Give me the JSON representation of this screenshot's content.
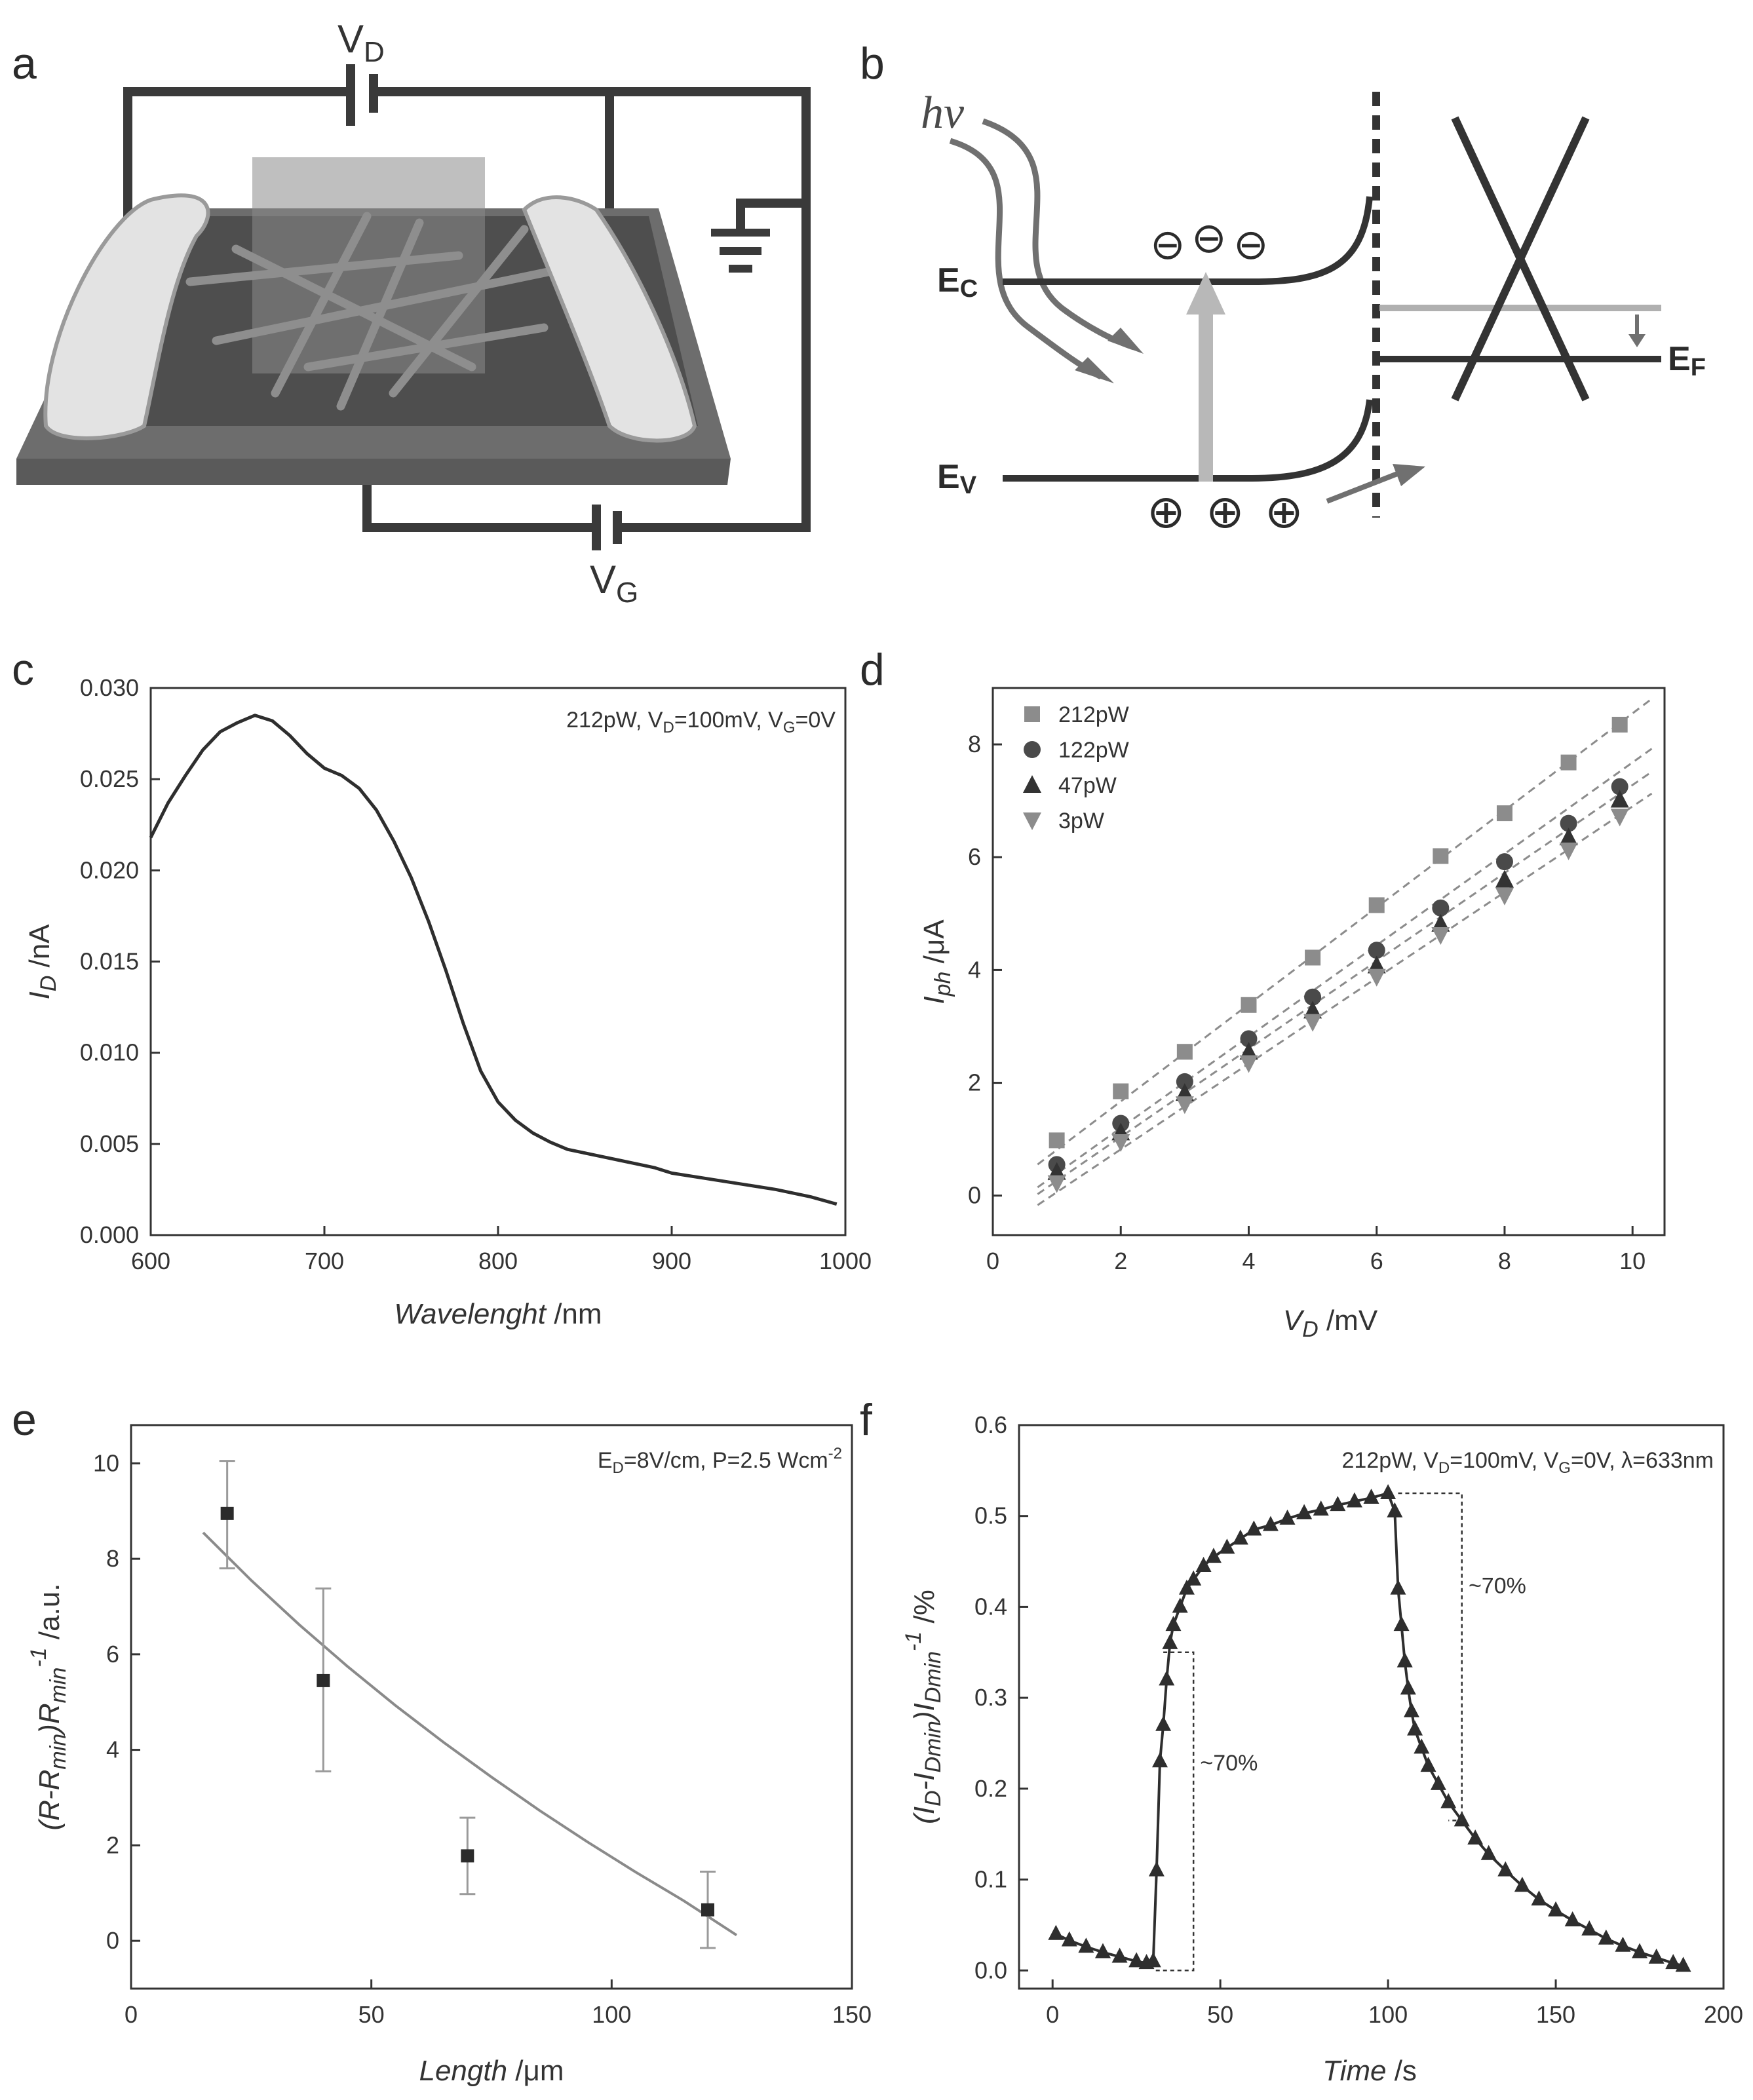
{
  "panels": {
    "a": {
      "letter": "a",
      "vd_label": "V",
      "vd_sub": "D",
      "vg_label": "V",
      "vg_sub": "G"
    },
    "b": {
      "letter": "b",
      "hv": "hν",
      "ec": "E",
      "ec_sub": "C",
      "ev": "E",
      "ev_sub": "V",
      "ef": "E",
      "ef_sub": "F",
      "electron_symbol": "⊖",
      "hole_symbol": "⊕"
    }
  },
  "chart_data": [
    {
      "id": "c",
      "letter": "c",
      "type": "line",
      "xlabel_italic": "Wavelenght",
      "xlabel_unit": " /nm",
      "ylabel_italic": "I",
      "ylabel_sub": "D",
      "ylabel_unit": " /nA",
      "xlim": [
        600,
        1000
      ],
      "ylim": [
        0,
        0.03
      ],
      "xticks": [
        "600",
        "700",
        "800",
        "900",
        "1000"
      ],
      "yticks": [
        "0.000",
        "0.005",
        "0.010",
        "0.015",
        "0.020",
        "0.025",
        "0.030"
      ],
      "annotation": {
        "p": "212pW, V",
        "s1": "D",
        "m": "=100mV, V",
        "s2": "G",
        "e": "=0V"
      },
      "x": [
        600,
        610,
        620,
        630,
        640,
        650,
        660,
        670,
        680,
        690,
        700,
        710,
        720,
        730,
        740,
        750,
        760,
        770,
        780,
        790,
        800,
        810,
        820,
        830,
        840,
        850,
        860,
        870,
        880,
        890,
        900,
        920,
        940,
        960,
        980,
        995
      ],
      "y": [
        0.0218,
        0.0237,
        0.0252,
        0.0266,
        0.0276,
        0.0281,
        0.0285,
        0.0282,
        0.0274,
        0.0264,
        0.0256,
        0.0252,
        0.0245,
        0.0233,
        0.0216,
        0.0196,
        0.0172,
        0.0145,
        0.0116,
        0.009,
        0.0073,
        0.0063,
        0.0056,
        0.0051,
        0.0047,
        0.0045,
        0.0043,
        0.0041,
        0.0039,
        0.0037,
        0.0034,
        0.0031,
        0.0028,
        0.0025,
        0.0021,
        0.0017
      ]
    },
    {
      "id": "d",
      "letter": "d",
      "type": "scatter",
      "xlabel_italic": "V",
      "xlabel_sub": "D",
      "xlabel_unit": " /mV",
      "ylabel_italic": "I",
      "ylabel_sub": "ph",
      "ylabel_unit": " /μA",
      "xlim": [
        0,
        10.5
      ],
      "ylim": [
        -0.7,
        9
      ],
      "xticks": [
        "0",
        "2",
        "4",
        "6",
        "8",
        "10"
      ],
      "yticks": [
        "0",
        "2",
        "4",
        "6",
        "8"
      ],
      "x": [
        1,
        2,
        3,
        4,
        5,
        6,
        7,
        8,
        9,
        9.8
      ],
      "series": [
        {
          "name": "212pW",
          "marker": "square",
          "color": "#8c8c8c",
          "values": [
            0.98,
            1.85,
            2.55,
            3.38,
            4.22,
            5.15,
            6.02,
            6.78,
            7.68,
            8.35
          ]
        },
        {
          "name": "122pW",
          "marker": "circle",
          "color": "#4a4a4a",
          "values": [
            0.55,
            1.28,
            2.02,
            2.78,
            3.52,
            4.35,
            5.1,
            5.92,
            6.6,
            7.25
          ]
        },
        {
          "name": "47pW",
          "marker": "triangle-up",
          "color": "#333333",
          "values": [
            0.42,
            1.12,
            1.82,
            2.55,
            3.28,
            4.08,
            4.82,
            5.6,
            6.35,
            7.02
          ]
        },
        {
          "name": "3pW",
          "marker": "triangle-down",
          "color": "#8c8c8c",
          "values": [
            0.22,
            0.95,
            1.62,
            2.35,
            3.08,
            3.88,
            4.62,
            5.32,
            6.12,
            6.72
          ]
        }
      ],
      "fits": [
        [
          -0.05,
          0.86
        ],
        [
          -0.42,
          0.81
        ],
        [
          -0.52,
          0.78
        ],
        [
          -0.7,
          0.76
        ]
      ]
    },
    {
      "id": "e",
      "letter": "e",
      "type": "scatter",
      "xlabel_italic": "Length",
      "xlabel_unit": " /μm",
      "ylabel_text": "(R-R",
      "ylabel_sub1": "min",
      "ylabel_mid": ")R",
      "ylabel_sub2": "min",
      "ylabel_sup": "-1",
      "ylabel_unit": " /a.u.",
      "xlim": [
        0,
        150
      ],
      "ylim": [
        -1,
        10.8
      ],
      "xticks": [
        "0",
        "50",
        "100",
        "150"
      ],
      "yticks": [
        "0",
        "2",
        "4",
        "6",
        "8",
        "10"
      ],
      "annotation": {
        "p": "E",
        "s1": "D",
        "e": "=8V/cm, P=2.5 Wcm",
        "sup": "-2"
      },
      "x": [
        20,
        40,
        70,
        120
      ],
      "values": [
        8.95,
        5.45,
        1.78,
        0.65
      ],
      "err_low": [
        7.8,
        3.55,
        0.98,
        -0.15
      ],
      "err_high": [
        10.05,
        7.38,
        2.58,
        1.45
      ],
      "fit_x": [
        15,
        25,
        35,
        45,
        55,
        65,
        75,
        85,
        95,
        105,
        115,
        126
      ],
      "fit_y": [
        8.55,
        7.55,
        6.62,
        5.75,
        4.93,
        4.16,
        3.43,
        2.73,
        2.07,
        1.44,
        0.84,
        0.12
      ]
    },
    {
      "id": "f",
      "letter": "f",
      "type": "line",
      "xlabel_italic": "Time",
      "xlabel_unit": " /s",
      "ylabel_text": "(I",
      "ylabel_sub1": "D",
      "ylabel_mid": "-I",
      "ylabel_sub2": "Dmin",
      "ylabel_mid2": ")I",
      "ylabel_sub3": "Dmin",
      "ylabel_sup": "-1",
      "ylabel_unit": " /%",
      "xlim": [
        -10,
        200
      ],
      "ylim": [
        -0.02,
        0.6
      ],
      "xticks": [
        "0",
        "50",
        "100",
        "150",
        "200"
      ],
      "yticks": [
        "0.0",
        "0.1",
        "0.2",
        "0.3",
        "0.4",
        "0.5",
        "0.6"
      ],
      "annotation": {
        "p": "212pW, V",
        "s1": "D",
        "m": "=100mV, V",
        "s2": "G",
        "e": "=0V, λ=633nm"
      },
      "label_rise": "~70%",
      "label_fall": "~70%",
      "x": [
        1,
        5,
        10,
        15,
        20,
        25,
        28,
        30,
        31,
        32,
        33,
        34,
        35,
        36,
        38,
        40,
        42,
        45,
        48,
        52,
        56,
        60,
        65,
        70,
        75,
        80,
        85,
        90,
        95,
        100,
        102,
        103,
        104,
        105,
        106,
        107,
        108,
        110,
        112,
        115,
        118,
        122,
        126,
        130,
        135,
        140,
        145,
        150,
        155,
        160,
        165,
        170,
        175,
        180,
        185,
        188
      ],
      "y": [
        0.04,
        0.033,
        0.026,
        0.02,
        0.015,
        0.01,
        0.008,
        0.01,
        0.11,
        0.23,
        0.27,
        0.32,
        0.36,
        0.38,
        0.4,
        0.42,
        0.43,
        0.445,
        0.455,
        0.465,
        0.475,
        0.485,
        0.49,
        0.497,
        0.503,
        0.507,
        0.512,
        0.516,
        0.52,
        0.525,
        0.505,
        0.42,
        0.38,
        0.34,
        0.31,
        0.285,
        0.265,
        0.245,
        0.225,
        0.205,
        0.185,
        0.165,
        0.145,
        0.128,
        0.11,
        0.093,
        0.078,
        0.066,
        0.055,
        0.045,
        0.035,
        0.027,
        0.02,
        0.014,
        0.008,
        0.005
      ]
    }
  ]
}
